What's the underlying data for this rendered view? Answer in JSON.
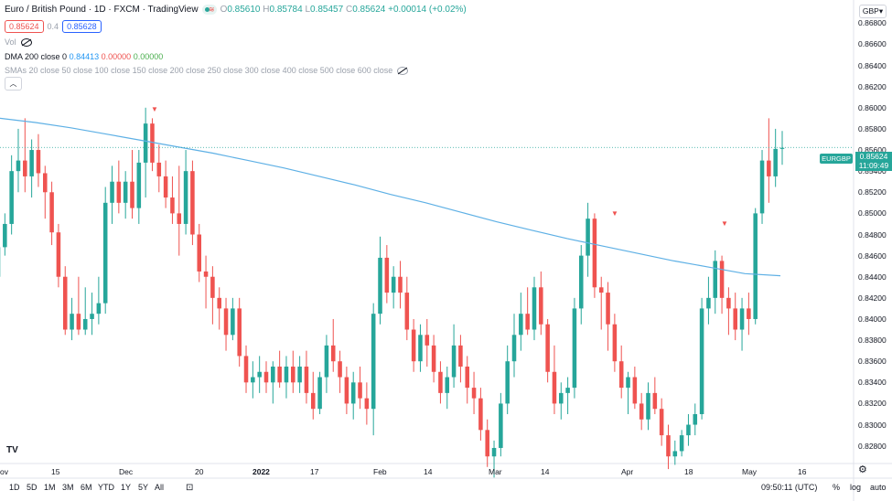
{
  "header": {
    "title": "Euro / British Pound · 1D · FXCM · TradingView",
    "ohlc": {
      "o": "O",
      "o_val": "0.85610",
      "h": "H",
      "h_val": "0.85784",
      "l": "L",
      "l_val": "0.85457",
      "c": "C",
      "c_val": "0.85624",
      "chg": "+0.00014 (+0.02%)"
    },
    "bid": "0.85624",
    "spread": "0.4",
    "ask": "0.85628",
    "currency": "GBP"
  },
  "indicators": {
    "vol": "Vol",
    "dma_label": "DMA 200 close 0",
    "dma_v1": "0.84413",
    "dma_v2": "0.00000",
    "dma_v3": "0.00000",
    "smas": "SMAs 20 close 50 close 100 close 150 close 200 close 250 close 300 close 400 close 500 close 600 close"
  },
  "price_axis": [
    "0.86800",
    "0.86600",
    "0.86400",
    "0.86200",
    "0.86000",
    "0.85800",
    "0.85600",
    "0.85400",
    "0.85200",
    "0.85000",
    "0.84800",
    "0.84600",
    "0.84400",
    "0.84200",
    "0.84000",
    "0.83800",
    "0.83600",
    "0.83400",
    "0.83200",
    "0.83000",
    "0.82800"
  ],
  "price_tag": {
    "symbol": "EURGBP",
    "price": "0.85624",
    "countdown": "11:09:49"
  },
  "time_axis": [
    "ov",
    "15",
    "Dec",
    "20",
    "2022",
    "17",
    "Feb",
    "14",
    "Mar",
    "14",
    "Apr",
    "18",
    "May",
    "16"
  ],
  "toolbar": {
    "ranges": [
      "5D",
      "1M",
      "3M",
      "6M",
      "YTD",
      "1Y",
      "5Y",
      "All"
    ],
    "first_range": "1D",
    "clock": "09:50:11 (UTC)",
    "percent": "%",
    "log": "log",
    "auto": "auto"
  },
  "colors": {
    "up": "#26a69a",
    "down": "#ef5350",
    "dma": "#5eb0e5"
  },
  "chart_data": {
    "type": "candlestick",
    "symbol": "EURGBP",
    "interval": "1D",
    "ylim": [
      0.8265,
      0.8695
    ],
    "series": [
      {
        "name": "OHLC",
        "candles": [
          [
            0.844,
            0.8475,
            0.8425,
            0.8468
          ],
          [
            0.8468,
            0.85,
            0.846,
            0.849
          ],
          [
            0.849,
            0.8555,
            0.848,
            0.854
          ],
          [
            0.854,
            0.858,
            0.852,
            0.855
          ],
          [
            0.855,
            0.859,
            0.852,
            0.8535
          ],
          [
            0.8535,
            0.857,
            0.8515,
            0.856
          ],
          [
            0.856,
            0.8575,
            0.8525,
            0.8538
          ],
          [
            0.8538,
            0.8545,
            0.8495,
            0.852
          ],
          [
            0.852,
            0.853,
            0.847,
            0.8482
          ],
          [
            0.8482,
            0.849,
            0.843,
            0.844
          ],
          [
            0.844,
            0.845,
            0.8385,
            0.839
          ],
          [
            0.839,
            0.842,
            0.838,
            0.8405
          ],
          [
            0.8405,
            0.844,
            0.8385,
            0.839
          ],
          [
            0.839,
            0.843,
            0.8385,
            0.84
          ],
          [
            0.84,
            0.8425,
            0.8385,
            0.8405
          ],
          [
            0.8405,
            0.844,
            0.8395,
            0.8415
          ],
          [
            0.8415,
            0.8525,
            0.8405,
            0.851
          ],
          [
            0.851,
            0.8545,
            0.849,
            0.853
          ],
          [
            0.853,
            0.855,
            0.85,
            0.851
          ],
          [
            0.851,
            0.854,
            0.8495,
            0.853
          ],
          [
            0.853,
            0.856,
            0.8495,
            0.8505
          ],
          [
            0.8505,
            0.856,
            0.849,
            0.8548
          ],
          [
            0.8548,
            0.86,
            0.8515,
            0.8585
          ],
          [
            0.8585,
            0.859,
            0.854,
            0.8548
          ],
          [
            0.8548,
            0.8565,
            0.852,
            0.8535
          ],
          [
            0.8535,
            0.855,
            0.8505,
            0.8515
          ],
          [
            0.8515,
            0.8535,
            0.849,
            0.85
          ],
          [
            0.85,
            0.8545,
            0.846,
            0.849
          ],
          [
            0.849,
            0.856,
            0.848,
            0.854
          ],
          [
            0.854,
            0.855,
            0.847,
            0.848
          ],
          [
            0.848,
            0.849,
            0.8435,
            0.8445
          ],
          [
            0.8445,
            0.846,
            0.841,
            0.844
          ],
          [
            0.844,
            0.845,
            0.8395,
            0.842
          ],
          [
            0.842,
            0.843,
            0.839,
            0.841
          ],
          [
            0.841,
            0.842,
            0.837,
            0.8385
          ],
          [
            0.8385,
            0.842,
            0.838,
            0.841
          ],
          [
            0.841,
            0.842,
            0.8355,
            0.8365
          ],
          [
            0.8365,
            0.8375,
            0.833,
            0.834
          ],
          [
            0.834,
            0.836,
            0.8325,
            0.8345
          ],
          [
            0.8345,
            0.8365,
            0.833,
            0.835
          ],
          [
            0.835,
            0.836,
            0.833,
            0.834
          ],
          [
            0.834,
            0.836,
            0.832,
            0.8355
          ],
          [
            0.8355,
            0.837,
            0.8335,
            0.834
          ],
          [
            0.834,
            0.8365,
            0.8325,
            0.8355
          ],
          [
            0.8355,
            0.837,
            0.833,
            0.834
          ],
          [
            0.834,
            0.8365,
            0.833,
            0.8355
          ],
          [
            0.8355,
            0.837,
            0.832,
            0.833
          ],
          [
            0.833,
            0.835,
            0.8305,
            0.8315
          ],
          [
            0.8315,
            0.835,
            0.831,
            0.8345
          ],
          [
            0.8345,
            0.8385,
            0.833,
            0.8375
          ],
          [
            0.8375,
            0.84,
            0.835,
            0.836
          ],
          [
            0.836,
            0.837,
            0.833,
            0.8345
          ],
          [
            0.8345,
            0.8355,
            0.831,
            0.832
          ],
          [
            0.832,
            0.835,
            0.8305,
            0.834
          ],
          [
            0.834,
            0.8355,
            0.8315,
            0.8325
          ],
          [
            0.8325,
            0.834,
            0.83,
            0.8315
          ],
          [
            0.8315,
            0.8415,
            0.829,
            0.8405
          ],
          [
            0.8405,
            0.8478,
            0.8395,
            0.8458
          ],
          [
            0.8458,
            0.847,
            0.8415,
            0.8425
          ],
          [
            0.8425,
            0.845,
            0.841,
            0.844
          ],
          [
            0.844,
            0.8455,
            0.841,
            0.8425
          ],
          [
            0.8425,
            0.844,
            0.838,
            0.839
          ],
          [
            0.839,
            0.84,
            0.835,
            0.836
          ],
          [
            0.836,
            0.8395,
            0.835,
            0.8385
          ],
          [
            0.8385,
            0.84,
            0.8355,
            0.8375
          ],
          [
            0.8375,
            0.8385,
            0.834,
            0.835
          ],
          [
            0.835,
            0.836,
            0.832,
            0.833
          ],
          [
            0.833,
            0.8355,
            0.8315,
            0.8345
          ],
          [
            0.8345,
            0.8395,
            0.8335,
            0.8375
          ],
          [
            0.8375,
            0.8385,
            0.834,
            0.8355
          ],
          [
            0.8355,
            0.8365,
            0.832,
            0.8335
          ],
          [
            0.8335,
            0.835,
            0.831,
            0.8325
          ],
          [
            0.8325,
            0.8335,
            0.8285,
            0.8295
          ],
          [
            0.8295,
            0.8305,
            0.826,
            0.827
          ],
          [
            0.827,
            0.8285,
            0.825,
            0.8278
          ],
          [
            0.8278,
            0.833,
            0.827,
            0.832
          ],
          [
            0.832,
            0.8375,
            0.831,
            0.836
          ],
          [
            0.836,
            0.8405,
            0.8345,
            0.8385
          ],
          [
            0.8385,
            0.8425,
            0.837,
            0.8405
          ],
          [
            0.8405,
            0.843,
            0.8385,
            0.839
          ],
          [
            0.839,
            0.844,
            0.838,
            0.843
          ],
          [
            0.843,
            0.8445,
            0.8385,
            0.8395
          ],
          [
            0.8395,
            0.84,
            0.834,
            0.835
          ],
          [
            0.835,
            0.8375,
            0.831,
            0.832
          ],
          [
            0.832,
            0.834,
            0.8305,
            0.833
          ],
          [
            0.833,
            0.8345,
            0.831,
            0.8335
          ],
          [
            0.8335,
            0.842,
            0.8325,
            0.841
          ],
          [
            0.841,
            0.847,
            0.8395,
            0.846
          ],
          [
            0.846,
            0.851,
            0.844,
            0.8495
          ],
          [
            0.8495,
            0.85,
            0.842,
            0.843
          ],
          [
            0.843,
            0.844,
            0.839,
            0.8425
          ],
          [
            0.8425,
            0.8435,
            0.837,
            0.8395
          ],
          [
            0.8395,
            0.8405,
            0.835,
            0.836
          ],
          [
            0.836,
            0.8375,
            0.8325,
            0.8335
          ],
          [
            0.8335,
            0.835,
            0.831,
            0.8345
          ],
          [
            0.8345,
            0.8355,
            0.8315,
            0.832
          ],
          [
            0.832,
            0.833,
            0.8295,
            0.8305
          ],
          [
            0.8305,
            0.834,
            0.8295,
            0.833
          ],
          [
            0.833,
            0.8345,
            0.831,
            0.8315
          ],
          [
            0.8315,
            0.8325,
            0.828,
            0.829
          ],
          [
            0.829,
            0.83,
            0.8258,
            0.827
          ],
          [
            0.827,
            0.8285,
            0.8262,
            0.8275
          ],
          [
            0.8275,
            0.8295,
            0.827,
            0.829
          ],
          [
            0.829,
            0.831,
            0.828,
            0.83
          ],
          [
            0.83,
            0.832,
            0.829,
            0.831
          ],
          [
            0.831,
            0.842,
            0.8305,
            0.841
          ],
          [
            0.841,
            0.844,
            0.8395,
            0.842
          ],
          [
            0.842,
            0.8465,
            0.8405,
            0.8455
          ],
          [
            0.8455,
            0.846,
            0.8405,
            0.842
          ],
          [
            0.842,
            0.843,
            0.8385,
            0.841
          ],
          [
            0.841,
            0.8425,
            0.838,
            0.839
          ],
          [
            0.839,
            0.842,
            0.837,
            0.841
          ],
          [
            0.841,
            0.8425,
            0.8385,
            0.84
          ],
          [
            0.84,
            0.8505,
            0.8395,
            0.85
          ],
          [
            0.85,
            0.856,
            0.849,
            0.855
          ],
          [
            0.855,
            0.859,
            0.851,
            0.8535
          ],
          [
            0.8535,
            0.858,
            0.8525,
            0.8561
          ],
          [
            0.8561,
            0.8578,
            0.8546,
            0.8562
          ]
        ]
      },
      {
        "name": "DMA 200",
        "values": [
          0.859,
          0.8586,
          0.8581,
          0.8575,
          0.8569,
          0.8563,
          0.8557,
          0.855,
          0.8543,
          0.8535,
          0.8527,
          0.8518,
          0.851,
          0.8501,
          0.8492,
          0.8484,
          0.8476,
          0.8469,
          0.8462,
          0.8455,
          0.8449,
          0.8443,
          0.8441
        ]
      }
    ],
    "markers": [
      "▼",
      "▼",
      "▼"
    ],
    "last_price": 0.85624
  }
}
